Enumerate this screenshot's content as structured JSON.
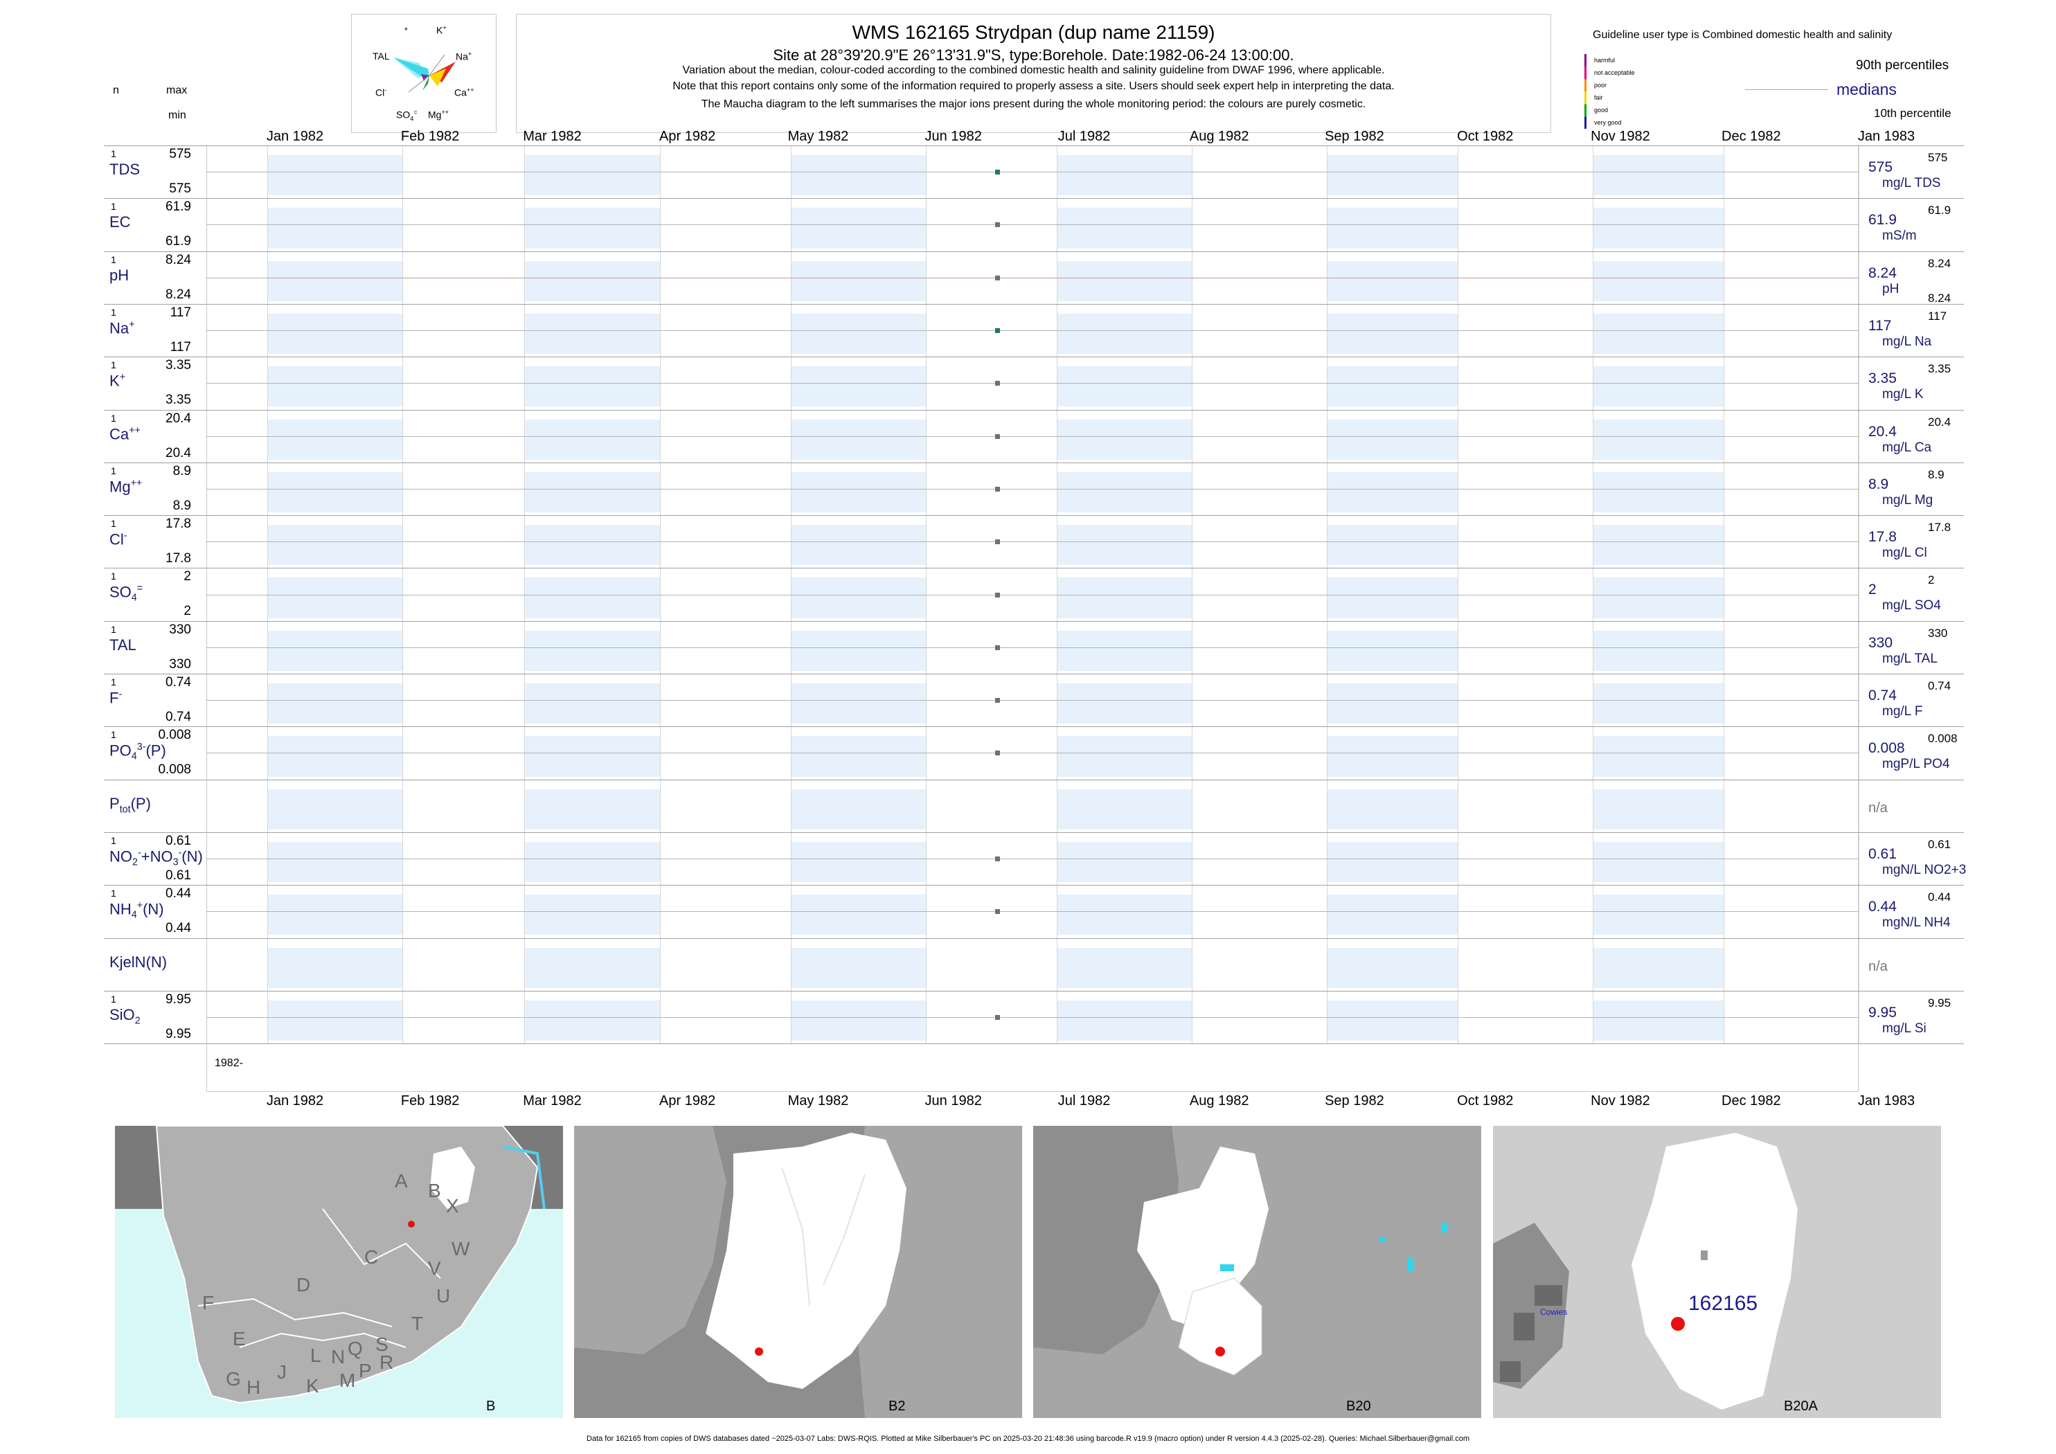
{
  "header": {
    "title": "WMS 162165  Strydpan (dup name 21159)",
    "subtitle": "Site at 28°39'20.9\"E 26°13'31.9\"S, type:Borehole. Date:1982-06-24 13:00:00.",
    "note1": "Variation about the median,  colour-coded according to the combined domestic health and salinity guideline from DWAF 1996, where applicable.",
    "note2": "Note that this report contains only some of the information required to properly assess a site. Users should seek expert help in interpreting the data.",
    "note3": "The Maucha diagram to the left summarises the major ions present during the whole monitoring period: the colours are purely cosmetic."
  },
  "maucha": {
    "labels": {
      "star": "*",
      "k": "K",
      "tal": "TAL",
      "na": "Na",
      "cl": "Cl",
      "ca": "Ca",
      "so4": "SO",
      "mg": "Mg"
    }
  },
  "left_header": {
    "n": "n",
    "max": "max",
    "min": "min"
  },
  "legend": {
    "guideline": "Guideline user type is Combined domestic health and salinity",
    "items": [
      "harmful",
      "not acceptable",
      "poor",
      "fair",
      "good",
      "very good"
    ],
    "colors": [
      "#8b008b",
      "#e0007a",
      "#ff8c00",
      "#f0d800",
      "#00aa00",
      "#1a1aa8"
    ],
    "p90": "90th percentiles",
    "medians": "medians",
    "p10": "10th percentile"
  },
  "months": [
    "Jan 1982",
    "Feb 1982",
    "Mar 1982",
    "Apr 1982",
    "May 1982",
    "Jun 1982",
    "Jul 1982",
    "Aug 1982",
    "Sep 1982",
    "Oct 1982",
    "Nov 1982",
    "Dec 1982",
    "Jan 1983"
  ],
  "bottom_year": "1982-",
  "chart_data": {
    "type": "scatter",
    "x": [
      "1982-06-24"
    ],
    "xlim": [
      "1982-01-01",
      "1983-01-01"
    ],
    "grid": true,
    "series": [
      {
        "name": "TDS",
        "n": "1",
        "max": "575",
        "min": "575",
        "median": "575",
        "unit": "mg/L TDS",
        "p90": "575",
        "p10": "",
        "values": [
          575
        ],
        "color": "#1f7a5a"
      },
      {
        "name": "EC",
        "n": "1",
        "max": "61.9",
        "min": "61.9",
        "median": "61.9",
        "unit": "mS/m",
        "p90": "61.9",
        "p10": "",
        "values": [
          61.9
        ],
        "color": "#707070"
      },
      {
        "name": "pH",
        "n": "1",
        "max": "8.24",
        "min": "8.24",
        "median": "8.24",
        "unit": "pH",
        "p90": "8.24",
        "p10": "8.24",
        "values": [
          8.24
        ],
        "color": "#707070"
      },
      {
        "name": "Na",
        "n": "1",
        "max": "117",
        "min": "117",
        "median": "117",
        "unit": "mg/L Na",
        "p90": "117",
        "p10": "",
        "values": [
          117
        ],
        "color": "#1f7a5a"
      },
      {
        "name": "K",
        "n": "1",
        "max": "3.35",
        "min": "3.35",
        "median": "3.35",
        "unit": "mg/L K",
        "p90": "3.35",
        "p10": "",
        "values": [
          3.35
        ],
        "color": "#707070"
      },
      {
        "name": "Ca",
        "n": "1",
        "max": "20.4",
        "min": "20.4",
        "median": "20.4",
        "unit": "mg/L Ca",
        "p90": "20.4",
        "p10": "",
        "values": [
          20.4
        ],
        "color": "#707070"
      },
      {
        "name": "Mg",
        "n": "1",
        "max": "8.9",
        "min": "8.9",
        "median": "8.9",
        "unit": "mg/L Mg",
        "p90": "8.9",
        "p10": "",
        "values": [
          8.9
        ],
        "color": "#707070"
      },
      {
        "name": "Cl",
        "n": "1",
        "max": "17.8",
        "min": "17.8",
        "median": "17.8",
        "unit": "mg/L Cl",
        "p90": "17.8",
        "p10": "",
        "values": [
          17.8
        ],
        "color": "#707070"
      },
      {
        "name": "SO4",
        "n": "1",
        "max": "2",
        "min": "2",
        "median": "2",
        "unit": "mg/L SO4",
        "p90": "2",
        "p10": "",
        "values": [
          2
        ],
        "color": "#707070"
      },
      {
        "name": "TAL",
        "n": "1",
        "max": "330",
        "min": "330",
        "median": "330",
        "unit": "mg/L TAL",
        "p90": "330",
        "p10": "",
        "values": [
          330
        ],
        "color": "#707070"
      },
      {
        "name": "F",
        "n": "1",
        "max": "0.74",
        "min": "0.74",
        "median": "0.74",
        "unit": "mg/L F",
        "p90": "0.74",
        "p10": "",
        "values": [
          0.74
        ],
        "color": "#707070"
      },
      {
        "name": "PO4(P)",
        "n": "1",
        "max": "0.008",
        "min": "0.008",
        "median": "0.008",
        "unit": "mgP/L PO4",
        "p90": "0.008",
        "p10": "",
        "values": [
          0.008
        ],
        "color": "#707070"
      },
      {
        "name": "Ptot(P)",
        "n": "",
        "max": "",
        "min": "",
        "median": "n/a",
        "unit": "",
        "p90": "",
        "p10": "",
        "values": [],
        "color": "#707070"
      },
      {
        "name": "NO2+NO3(N)",
        "n": "1",
        "max": "0.61",
        "min": "0.61",
        "median": "0.61",
        "unit": "mgN/L NO2+3",
        "p90": "0.61",
        "p10": "",
        "values": [
          0.61
        ],
        "color": "#707070"
      },
      {
        "name": "NH4(N)",
        "n": "1",
        "max": "0.44",
        "min": "0.44",
        "median": "0.44",
        "unit": "mgN/L NH4",
        "p90": "0.44",
        "p10": "",
        "values": [
          0.44
        ],
        "color": "#707070"
      },
      {
        "name": "KjelN(N)",
        "n": "",
        "max": "",
        "min": "",
        "median": "n/a",
        "unit": "",
        "p90": "",
        "p10": "",
        "values": [],
        "color": "#707070"
      },
      {
        "name": "SiO2",
        "n": "1",
        "max": "9.95",
        "min": "9.95",
        "median": "9.95",
        "unit": "mg/L Si",
        "p90": "9.95",
        "p10": "",
        "values": [
          9.95
        ],
        "color": "#707070"
      }
    ]
  },
  "maps": {
    "regions": [
      "A",
      "B",
      "X",
      "C",
      "W",
      "D",
      "V",
      "U",
      "F",
      "E",
      "T",
      "G",
      "H",
      "J",
      "K",
      "L",
      "N",
      "Q",
      "M",
      "P",
      "S",
      "R"
    ],
    "names": [
      "B",
      "B2",
      "B20",
      "B20A"
    ],
    "site_label": "162165",
    "place_label": "Cowies"
  },
  "footer": "Data for 162165 from copies of DWS databases dated ~2025-03-07 Labs: DWS-RQIS. Plotted at Mike Silberbauer's PC on 2025-03-20 21:48:36 using barcode.R v19.9 (macro option) under R version 4.4.3 (2025-02-28). Queries: Michael.Silberbauer@gmail.com"
}
